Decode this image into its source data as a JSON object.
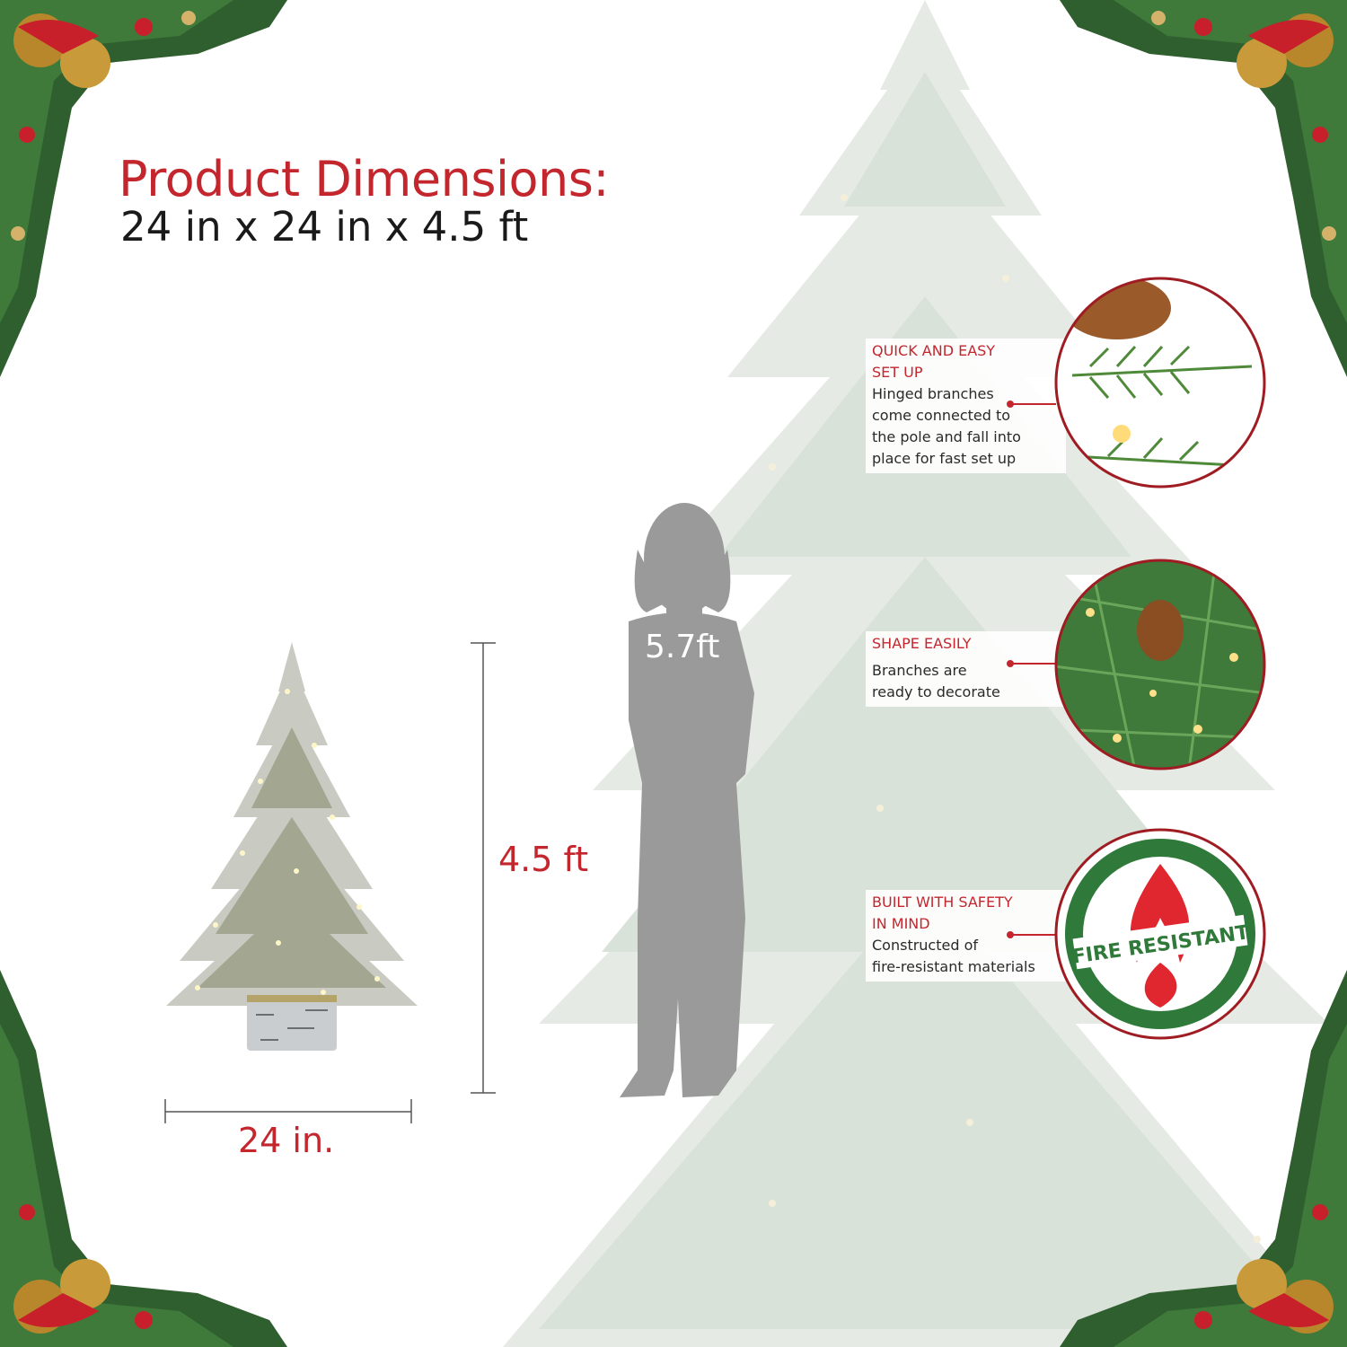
{
  "heading": {
    "title": "Product Dimensions:",
    "dimensions": "24 in x 24 in x 4.5 ft"
  },
  "measurements": {
    "tree_height": "4.5 ft",
    "tree_width": "24 in.",
    "person_height": "5.7ft"
  },
  "features": [
    {
      "title_line1": "QUICK AND EASY",
      "title_line2": "SET UP",
      "desc_lines": [
        "Hinged branches",
        "come connected to",
        "the pole and fall into",
        "place for fast set up"
      ]
    },
    {
      "title_line1": "SHAPE EASILY",
      "desc_lines": [
        "Branches are",
        "ready to decorate"
      ]
    },
    {
      "title_line1": "BUILT WITH SAFETY",
      "title_line2": "IN MIND",
      "desc_lines": [
        "Constructed of",
        "fire-resistant materials"
      ]
    }
  ],
  "badge": {
    "text": "FIRE RESISTANT"
  },
  "colors": {
    "accent_red": "#c4262e",
    "badge_green": "#2f7a3a",
    "silhouette_gray": "#9a9a9a",
    "ghost_tree": "#dfe6df"
  }
}
